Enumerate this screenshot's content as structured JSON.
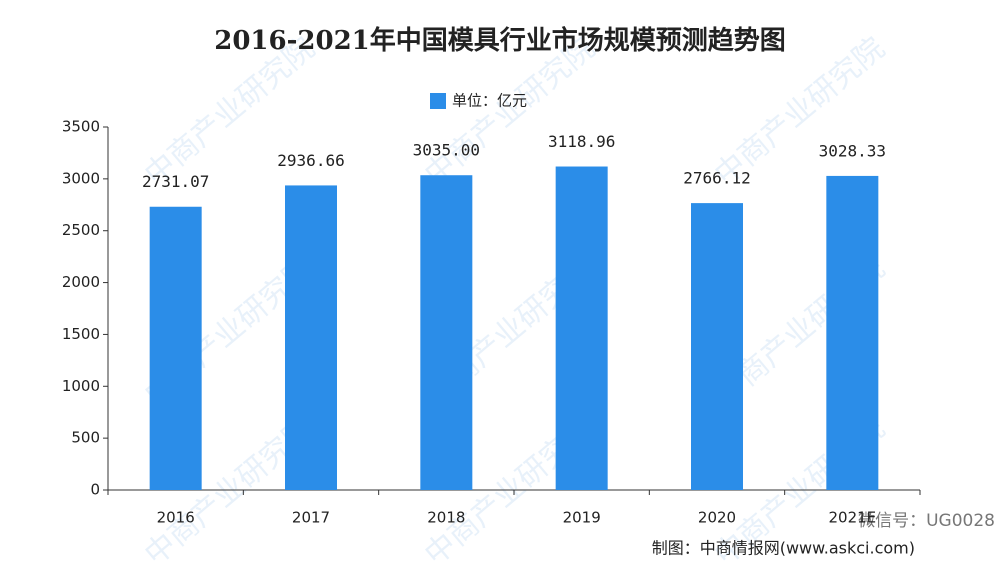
{
  "chart_data": {
    "type": "bar",
    "title": "2016-2021年中国模具行业市场规模预测趋势图",
    "legend": "单位：亿元",
    "categories": [
      "2016",
      "2017",
      "2018",
      "2019",
      "2020",
      "2021E"
    ],
    "values": [
      2731.07,
      2936.66,
      3035.0,
      3118.96,
      2766.12,
      3028.33
    ],
    "value_labels": [
      "2731.07",
      "2936.66",
      "3035.00",
      "3118.96",
      "2766.12",
      "3028.33"
    ],
    "color": "#2b8de8",
    "ylim": [
      0,
      3500
    ],
    "yticks": [
      0,
      500,
      1000,
      1500,
      2000,
      2500,
      3000,
      3500
    ],
    "grid": false,
    "source": "制图：中商情报网(www.askci.com)",
    "wechat": "微信号：UG0028",
    "watermark": "中商产业研究院"
  }
}
